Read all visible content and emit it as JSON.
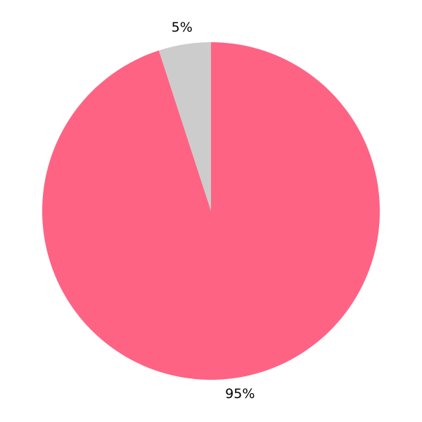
{
  "chart_data": {
    "type": "pie",
    "start_angle": "top",
    "direction": "clockwise",
    "slices": [
      {
        "label": "95%",
        "value": 95,
        "color": "#ff6384"
      },
      {
        "label": "5%",
        "value": 5,
        "color": "#cccccc"
      }
    ]
  }
}
